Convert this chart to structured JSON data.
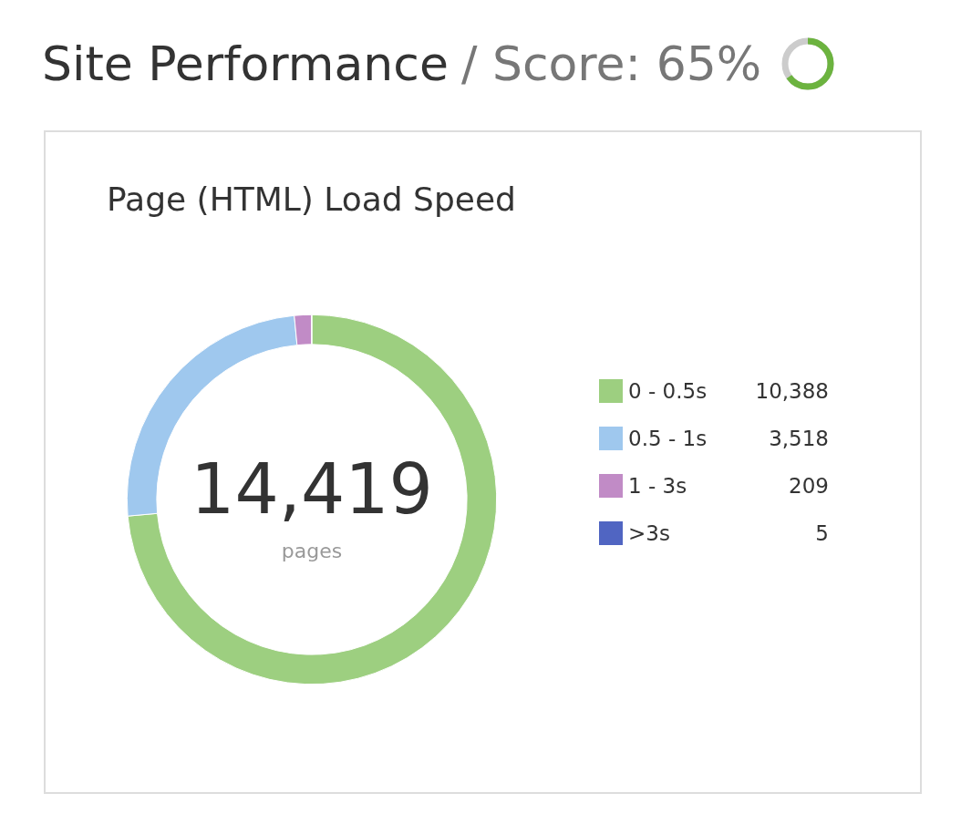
{
  "chart_data": {
    "type": "donut",
    "title": "Site Performance",
    "subtitle": "/ Score: 65%",
    "annotations": [
      "Page (HTML) Load Speed",
      "14,419",
      "pages"
    ],
    "categories": [
      "0 - 0.5s",
      "0.5 - 1s",
      "1 - 3s",
      ">3s"
    ],
    "values": [
      10388,
      3518,
      209,
      5
    ],
    "value_labels": [
      "10,388",
      "3,518",
      "209",
      "5"
    ],
    "colors": [
      "#9dcf80",
      "#9fc8ee",
      "#c18bc6",
      "#5065c2"
    ],
    "legend": "right"
  }
}
